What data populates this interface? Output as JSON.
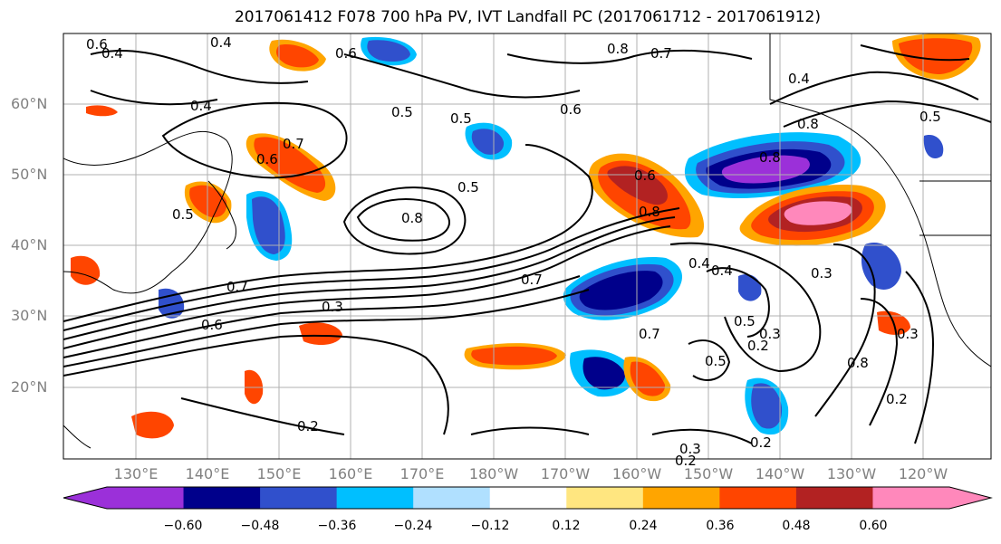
{
  "title": "2017061412 F078 700 hPa PV, IVT Landfall PC (2017061712 - 2017061912)",
  "map": {
    "lat_ticks": [
      "60°N",
      "50°N",
      "40°N",
      "30°N",
      "20°N"
    ],
    "lon_ticks": [
      "130°E",
      "140°E",
      "150°E",
      "160°E",
      "170°E",
      "180°W",
      "170°W",
      "160°W",
      "150°W",
      "140°W",
      "130°W",
      "120°W"
    ],
    "contour_labels": [
      "0.6",
      "0.4",
      "0.4",
      "0.6",
      "0.8",
      "0.7",
      "0.4",
      "0.4",
      "0.5",
      "0.5",
      "0.7",
      "0.6",
      "0.6",
      "0.5",
      "0.8",
      "0.5",
      "0.8",
      "0.8",
      "0.6",
      "0.8",
      "0.5",
      "0.4",
      "0.7",
      "0.5",
      "0.7",
      "0.3",
      "0.6",
      "0.3",
      "0.7",
      "0.8",
      "0.4",
      "0.3",
      "0.2",
      "0.5",
      "0.3",
      "0.2",
      "0.2",
      "0.3",
      "0.2",
      "0.2"
    ],
    "colors": {
      "contour": "#000000",
      "coast": "#000000",
      "grid": "#b0b0b0"
    }
  },
  "colorbar": {
    "labels": [
      "−0.60",
      "−0.48",
      "−0.36",
      "−0.24",
      "−0.12",
      "0.12",
      "0.24",
      "0.36",
      "0.48",
      "0.60"
    ],
    "colors": [
      "#9b30d9",
      "#00008b",
      "#3050cc",
      "#00bfff",
      "#b0e0ff",
      "#ffffff",
      "#ffe680",
      "#ffa500",
      "#ff4500",
      "#b22222",
      "#ff88bb"
    ]
  }
}
